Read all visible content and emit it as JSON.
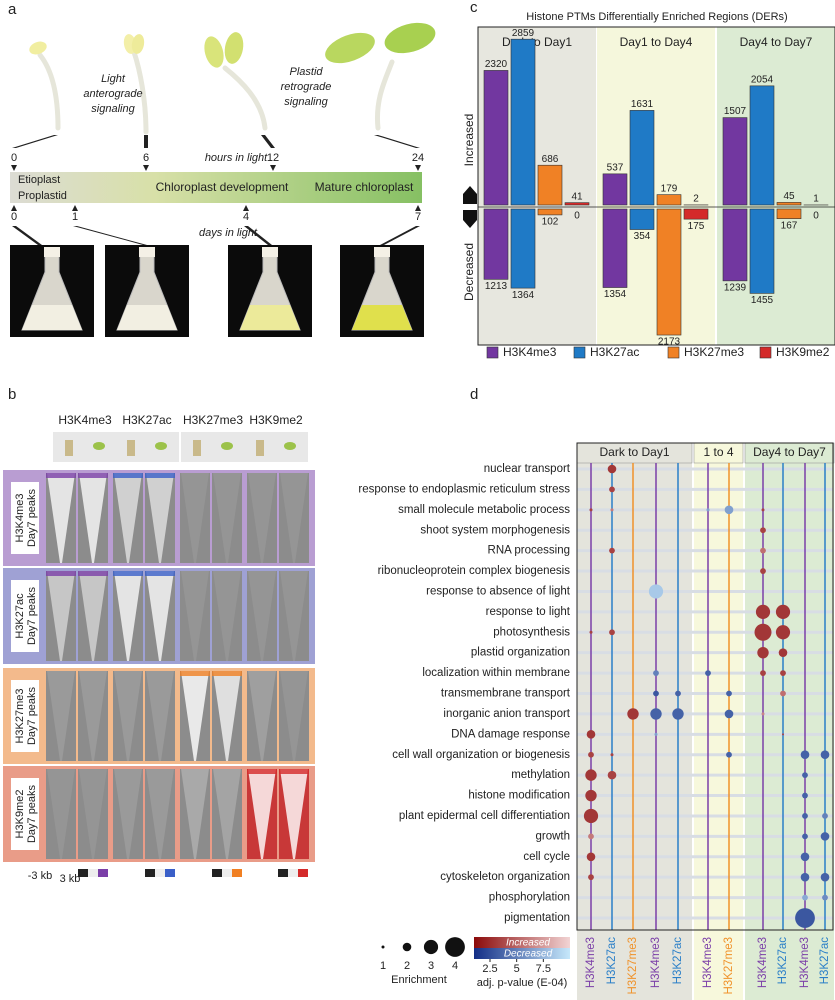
{
  "panel_labels": [
    "a",
    "b",
    "c",
    "d"
  ],
  "panel_a": {
    "annotations": [
      [
        "Light",
        "anterograde",
        "signaling"
      ],
      [
        "Plastid",
        "retrograde",
        "signaling"
      ]
    ],
    "hours": [
      "0",
      "6",
      "12",
      "24"
    ],
    "hours_label": "hours in light",
    "stages": [
      "Etioplast",
      "Proplastid",
      "Chloroplast development",
      "Mature chloroplast"
    ],
    "days": [
      "0",
      "1",
      "4",
      "7"
    ],
    "days_label": "days in light"
  },
  "panel_b": {
    "columns": [
      "H3K4me3",
      "H3K27ac",
      "H3K27me3",
      "H3K9me2"
    ],
    "rows": [
      [
        "H3K4me3",
        "Day7 peaks"
      ],
      [
        "H3K27ac",
        "Day7 peaks"
      ],
      [
        "H3K27me3",
        "Day7 peaks"
      ],
      [
        "H3K9me2",
        "Day7 peaks"
      ]
    ],
    "x_labels": [
      "-3 kb",
      "3 kb"
    ]
  },
  "chart_data": [
    {
      "type": "bar",
      "title": "Histone PTMs Differentially Enriched Regions (DERs)",
      "categories": [
        "Dark to Day1",
        "Day1 to Day4",
        "Day4 to Day7"
      ],
      "category_colors": [
        "#e7e7df",
        "#f5f7dc",
        "#dcebd3"
      ],
      "axis_labels": [
        "Increased",
        "Decreased"
      ],
      "series": [
        {
          "name": "H3K4me3",
          "color": "#7237a0",
          "increased": [
            2320,
            537,
            1507
          ],
          "decreased": [
            1213,
            1354,
            1239
          ]
        },
        {
          "name": "H3K27ac",
          "color": "#1f7ac6",
          "increased": [
            2859,
            1631,
            2054
          ],
          "decreased": [
            1364,
            354,
            1455
          ]
        },
        {
          "name": "H3K27me3",
          "color": "#f08125",
          "increased": [
            686,
            179,
            45
          ],
          "decreased": [
            102,
            2173,
            167
          ]
        },
        {
          "name": "H3K9me2",
          "color": "#d42a2a",
          "increased": [
            41,
            2,
            1
          ],
          "decreased": [
            0,
            175,
            0
          ]
        }
      ]
    },
    {
      "type": "dot",
      "terms": [
        "nuclear transport",
        "response to endoplasmic reticulum stress",
        "small molecule metabolic process",
        "shoot system morphogenesis",
        "RNA processing",
        "ribonucleoprotein complex biogenesis",
        "response to absence of light",
        "response to light",
        "photosynthesis",
        "plastid organization",
        "localization within membrane",
        "transmembrane transport",
        "inorganic anion transport",
        "DNA damage response",
        "cell wall organization or biogenesis",
        "methylation",
        "histone modification",
        "plant epidermal cell differentiation",
        "growth",
        "cell cycle",
        "cytoskeleton organization",
        "phosphorylation",
        "pigmentation"
      ],
      "direction_colors": {
        "Increased": [
          "#8b0a0a",
          "#f2d4d4"
        ],
        "Decreased": [
          "#132e86",
          "#c6e8fb"
        ]
      },
      "groups": [
        {
          "name": "Dark to Day1",
          "color": "#e4e4dc",
          "columns": [
            {
              "name": "H3K4me3",
              "color": "#7b3fa8",
              "direction": "Increased",
              "enrichment": [
                null,
                null,
                1,
                null,
                null,
                null,
                null,
                null,
                1,
                null,
                null,
                null,
                null,
                2,
                1.5,
                2.5,
                2.5,
                3,
                1.5,
                2,
                1.5,
                null,
                null
              ],
              "pvalue": [
                null,
                null,
                3.5,
                null,
                null,
                null,
                null,
                null,
                3.5,
                null,
                null,
                null,
                null,
                3,
                3.5,
                3,
                3,
                3,
                6,
                3,
                3.5,
                null,
                null
              ]
            },
            {
              "name": "H3K27ac",
              "color": "#2a7fc8",
              "direction": "Increased",
              "enrichment": [
                2,
                1.5,
                1,
                null,
                1.5,
                null,
                null,
                null,
                1.5,
                null,
                null,
                null,
                null,
                null,
                1,
                2,
                null,
                null,
                null,
                null,
                null,
                null,
                null
              ],
              "pvalue": [
                3,
                3.5,
                6,
                null,
                3.5,
                null,
                null,
                null,
                3.5,
                null,
                null,
                null,
                null,
                null,
                3.5,
                3.5,
                null,
                null,
                null,
                null,
                null,
                null,
                null
              ]
            },
            {
              "name": "H3K27me3",
              "color": "#f0922a",
              "direction": "Increased",
              "enrichment": [
                null,
                null,
                null,
                null,
                null,
                null,
                null,
                null,
                null,
                null,
                null,
                null,
                2.5,
                null,
                null,
                null,
                null,
                null,
                null,
                null,
                null,
                null,
                null
              ],
              "pvalue": [
                null,
                null,
                null,
                null,
                null,
                null,
                null,
                null,
                null,
                null,
                null,
                null,
                3,
                null,
                null,
                null,
                null,
                null,
                null,
                null,
                null,
                null,
                null
              ]
            },
            {
              "name": "H3K4me3",
              "color": "#7b3fa8",
              "direction": "Decreased",
              "enrichment": [
                null,
                null,
                null,
                null,
                null,
                null,
                3,
                null,
                null,
                null,
                1.5,
                1.5,
                2.5,
                1,
                null,
                null,
                null,
                null,
                null,
                null,
                null,
                null,
                null
              ],
              "pvalue": [
                null,
                null,
                null,
                null,
                null,
                null,
                8.5,
                null,
                null,
                null,
                5,
                3,
                3.5,
                6.5,
                null,
                null,
                null,
                null,
                null,
                null,
                null,
                null,
                null
              ]
            },
            {
              "name": "H3K27ac",
              "color": "#2a7fc8",
              "direction": "Decreased",
              "enrichment": [
                null,
                null,
                null,
                null,
                null,
                null,
                null,
                null,
                null,
                null,
                null,
                1.5,
                2.5,
                null,
                null,
                null,
                null,
                null,
                null,
                null,
                null,
                null,
                null
              ],
              "pvalue": [
                null,
                null,
                null,
                null,
                null,
                null,
                null,
                null,
                null,
                null,
                null,
                3.5,
                3.5,
                null,
                null,
                null,
                null,
                null,
                null,
                null,
                null,
                null,
                null
              ]
            }
          ]
        },
        {
          "name": "1 to 4",
          "color": "#f7f8dc",
          "columns": [
            {
              "name": "H3K4me3",
              "color": "#7b3fa8",
              "direction": "Decreased",
              "enrichment": [
                null,
                null,
                1,
                null,
                null,
                null,
                null,
                null,
                null,
                null,
                1.5,
                null,
                null,
                null,
                null,
                null,
                null,
                null,
                null,
                null,
                null,
                null,
                null
              ],
              "pvalue": [
                null,
                null,
                6.5,
                null,
                null,
                null,
                null,
                null,
                null,
                null,
                3.5,
                null,
                null,
                null,
                null,
                null,
                null,
                null,
                null,
                null,
                null,
                null,
                null
              ]
            },
            {
              "name": "H3K27me3",
              "color": "#f0922a",
              "direction": "Decreased",
              "enrichment": [
                null,
                null,
                2,
                null,
                null,
                null,
                null,
                null,
                null,
                null,
                null,
                1.5,
                2,
                null,
                1.5,
                null,
                null,
                null,
                null,
                null,
                null,
                null,
                null
              ],
              "pvalue": [
                null,
                null,
                6.5,
                null,
                null,
                null,
                null,
                null,
                null,
                null,
                null,
                3.5,
                3.5,
                null,
                3.5,
                null,
                null,
                null,
                null,
                null,
                null,
                null,
                null
              ]
            }
          ]
        },
        {
          "name": "Day4 to Day7",
          "color": "#dcebd3",
          "columns": [
            {
              "name": "H3K4me3",
              "color": "#7b3fa8",
              "direction": "Increased",
              "enrichment": [
                null,
                null,
                1,
                1.5,
                1.5,
                1.5,
                null,
                3,
                3.5,
                2.5,
                1.5,
                null,
                1,
                null,
                null,
                null,
                null,
                null,
                null,
                null,
                null,
                null,
                null
              ],
              "pvalue": [
                null,
                null,
                3.5,
                3.5,
                5.5,
                3.5,
                null,
                3,
                3,
                3,
                3.5,
                null,
                6.5,
                null,
                null,
                null,
                null,
                null,
                null,
                null,
                null,
                null,
                null
              ]
            },
            {
              "name": "H3K27ac",
              "color": "#2a7fc8",
              "direction": "Increased",
              "enrichment": [
                null,
                null,
                null,
                null,
                null,
                null,
                null,
                3,
                3,
                2,
                1.5,
                1.5,
                null,
                0.8,
                null,
                null,
                null,
                null,
                null,
                null,
                null,
                null,
                null
              ],
              "pvalue": [
                null,
                null,
                null,
                null,
                null,
                null,
                null,
                3,
                3,
                3,
                3.5,
                5.5,
                null,
                3.5,
                null,
                null,
                null,
                null,
                null,
                null,
                null,
                null,
                null
              ]
            },
            {
              "name": "H3K4me3",
              "color": "#7b3fa8",
              "direction": "Decreased",
              "enrichment": [
                null,
                null,
                null,
                null,
                null,
                null,
                null,
                null,
                null,
                null,
                null,
                null,
                null,
                null,
                2,
                1.5,
                1.5,
                1.5,
                1.5,
                2,
                2,
                1.5,
                4
              ],
              "pvalue": [
                null,
                null,
                null,
                null,
                null,
                null,
                null,
                null,
                null,
                null,
                null,
                null,
                null,
                null,
                3.5,
                3.5,
                3.5,
                3.5,
                3.5,
                3.5,
                3.5,
                7,
                3
              ]
            },
            {
              "name": "H3K27ac",
              "color": "#2a7fc8",
              "direction": "Decreased",
              "enrichment": [
                null,
                null,
                null,
                null,
                null,
                null,
                null,
                null,
                null,
                null,
                null,
                null,
                null,
                null,
                2,
                null,
                null,
                1.5,
                2,
                null,
                2,
                1.5,
                null
              ],
              "pvalue": [
                null,
                null,
                null,
                null,
                null,
                null,
                null,
                null,
                null,
                null,
                null,
                null,
                null,
                null,
                3.5,
                null,
                null,
                5,
                3.5,
                null,
                3.5,
                5.5,
                null
              ]
            }
          ]
        }
      ],
      "size_legend": {
        "title": "Enrichment",
        "values": [
          1,
          2,
          3,
          4
        ]
      },
      "color_legend": {
        "title": "adj. p-value (E-04)",
        "labels": [
          "Increased",
          "Decreased"
        ],
        "clim": [
          1,
          10
        ],
        "ticks": [
          2.5,
          5,
          7.5
        ]
      }
    }
  ]
}
